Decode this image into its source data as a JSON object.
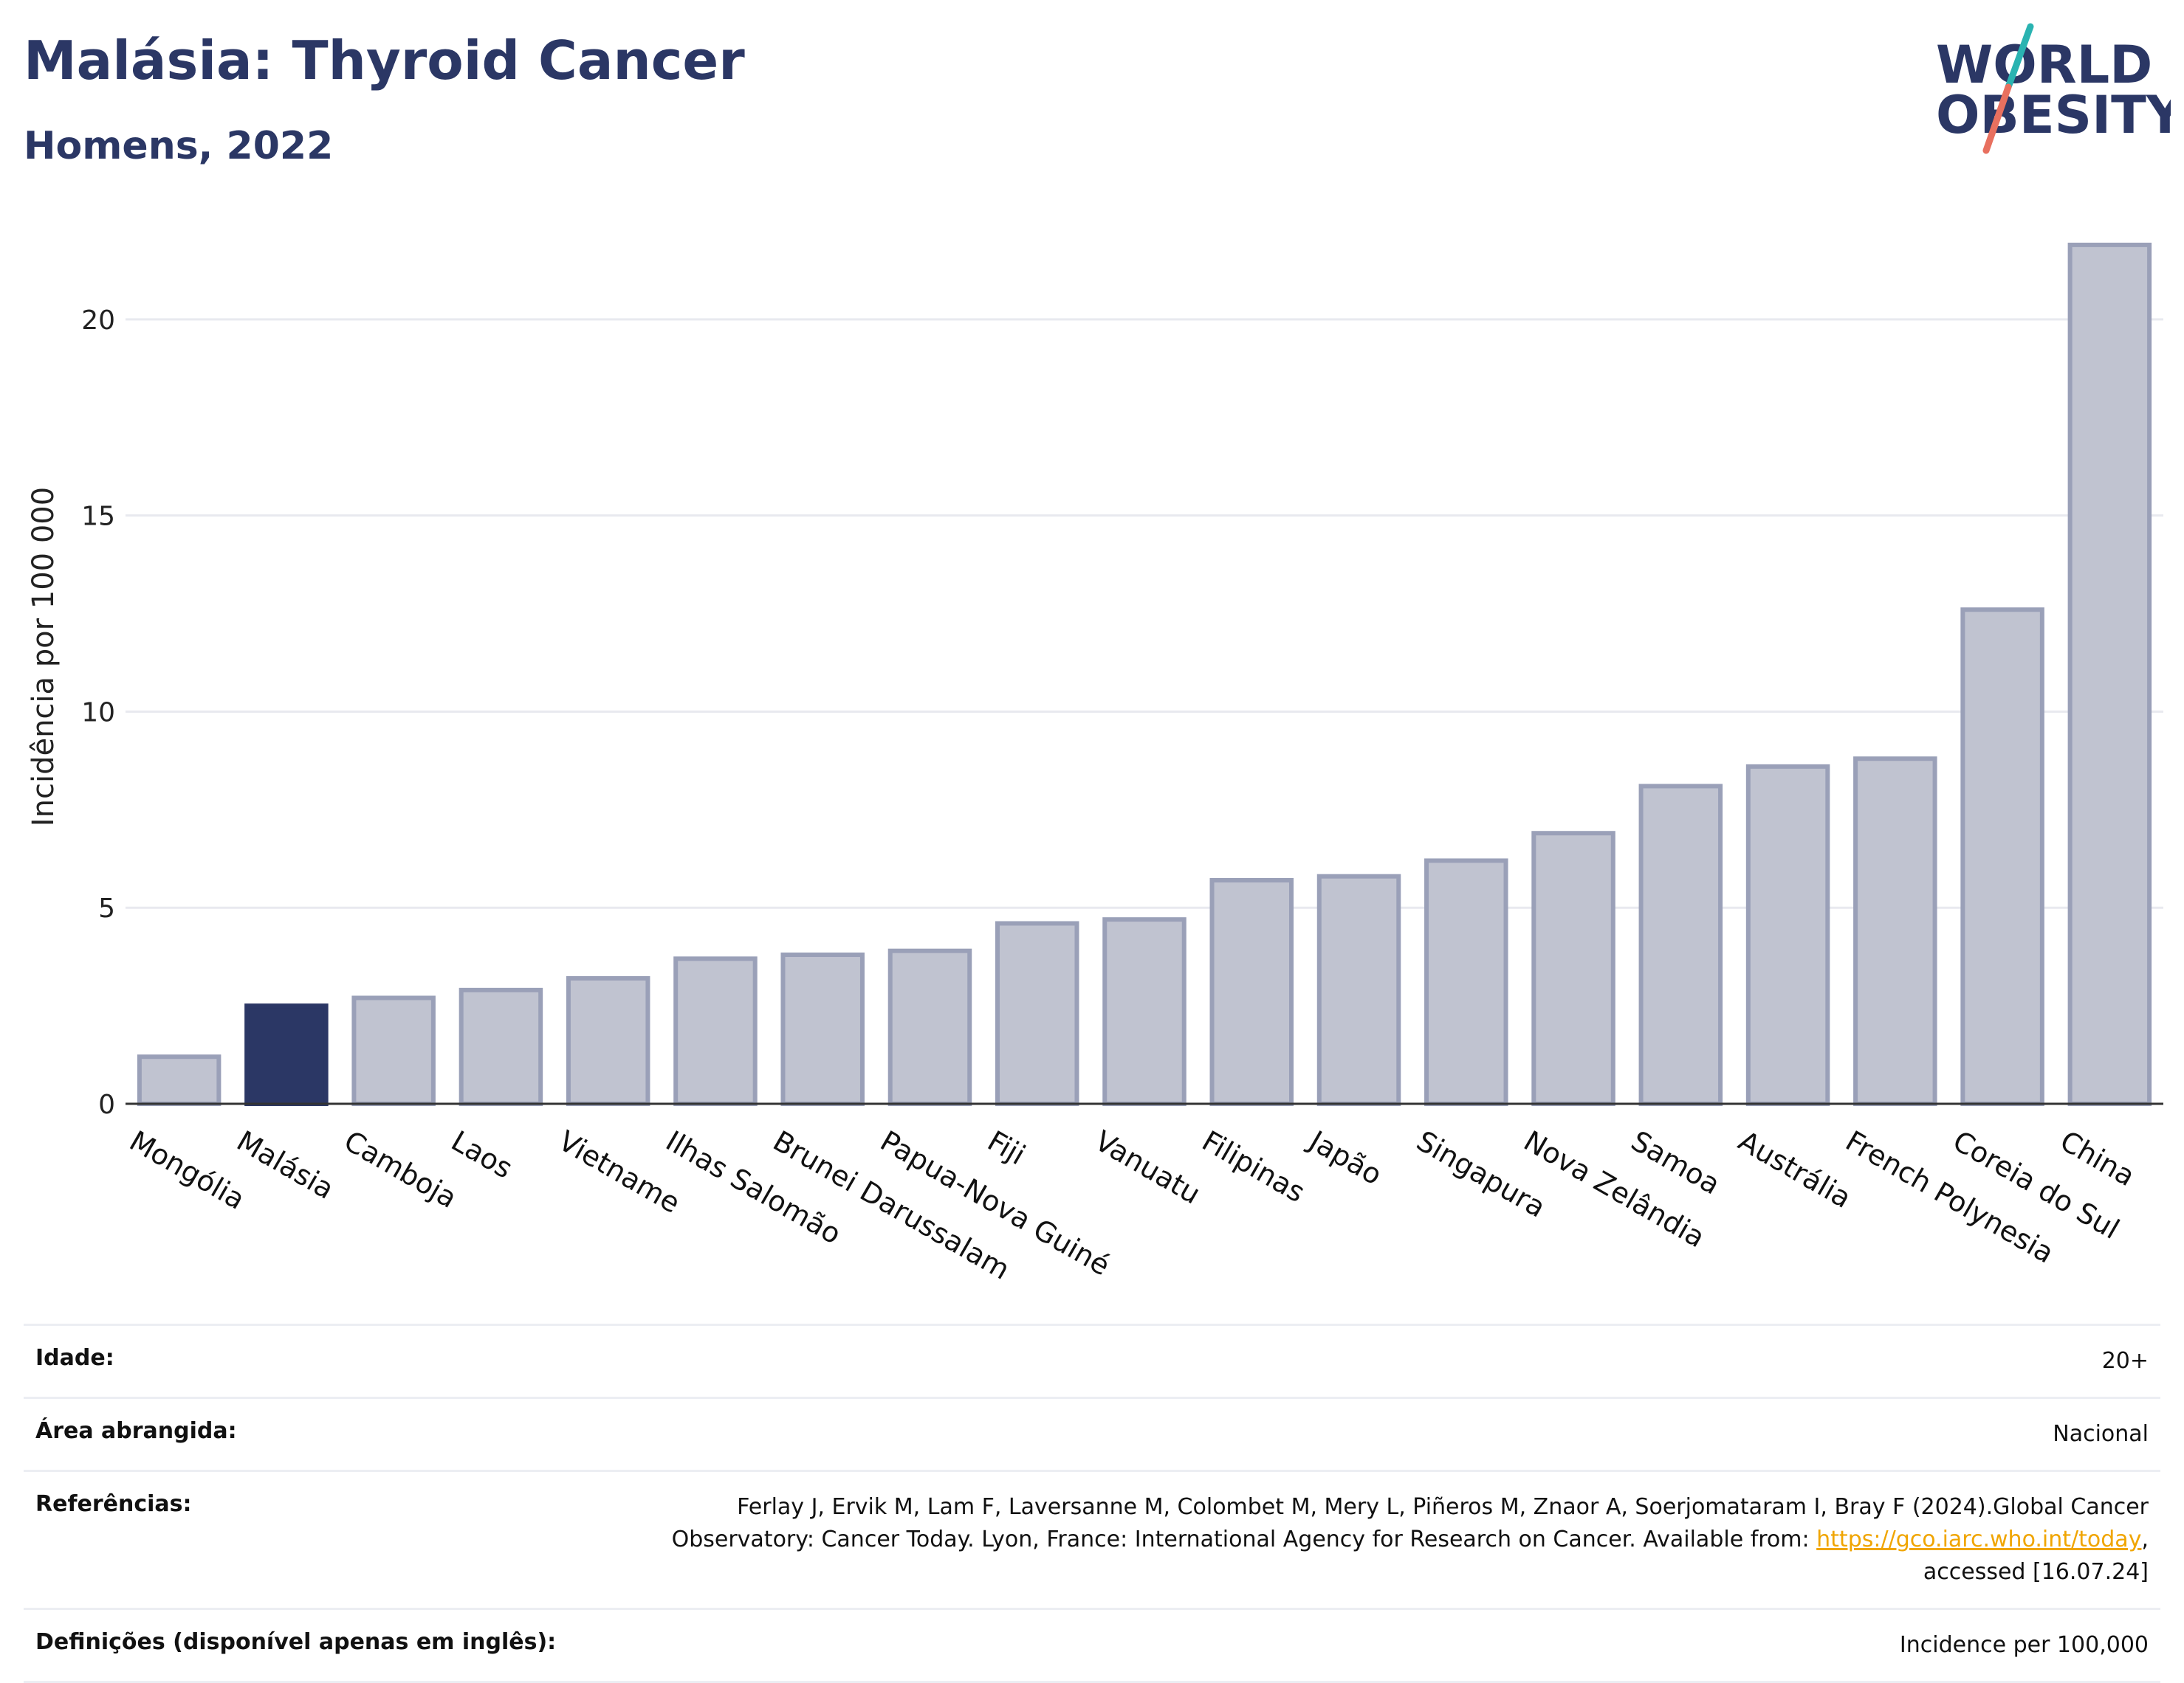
{
  "header": {
    "title": "Malásia: Thyroid Cancer",
    "subtitle": "Homens, 2022"
  },
  "logo": {
    "line1": "WORLD",
    "line2": "OBESITY",
    "colors": {
      "text": "#2b3765",
      "slash_teal": "#2ab3b1",
      "slash_coral": "#e8705f"
    }
  },
  "chart_data": {
    "type": "bar",
    "ylabel": "Incidência por 100 000",
    "xlabel": "",
    "ylim": [
      0,
      22.5
    ],
    "yticks": [
      0,
      5,
      10,
      15,
      20
    ],
    "grid": true,
    "categories": [
      "Mongólia",
      "Malásia",
      "Camboja",
      "Laos",
      "Vietname",
      "Ilhas Salomão",
      "Brunei Darussalam",
      "Papua-Nova Guiné",
      "Fiji",
      "Vanuatu",
      "Filipinas",
      "Japão",
      "Singapura",
      "Nova Zelândia",
      "Samoa",
      "Austrália",
      "French Polynesia",
      "Coreia do Sul",
      "China"
    ],
    "values": [
      1.2,
      2.5,
      2.7,
      2.9,
      3.2,
      3.7,
      3.8,
      3.9,
      4.6,
      4.7,
      5.7,
      5.8,
      6.2,
      6.9,
      8.1,
      8.6,
      8.8,
      12.6,
      21.9
    ],
    "highlight": "Malásia",
    "colors": {
      "bar": "#c0c3d0",
      "bar_border": "#9aa0b8",
      "highlight": "#2b3765"
    }
  },
  "meta": {
    "rows": [
      {
        "label": "Idade:",
        "value": "20+"
      },
      {
        "label": "Área abrangida:",
        "value": "Nacional"
      },
      {
        "label": "Referências:",
        "value_line1": "Ferlay J, Ervik M, Lam F, Laversanne M, Colombet M, Mery L, Piñeros M, Znaor A, Soerjomataram I, Bray F (2024).Global Cancer",
        "value_line2_pre": "Observatory: Cancer Today. Lyon, France: International Agency for Research on Cancer. Available from: ",
        "link": "https://gco.iarc.who.int/today",
        "value_line2_post": ",",
        "value_line3": "accessed [16.07.24]"
      },
      {
        "label": "Definições (disponível apenas em inglês):",
        "value": "Incidence per 100,000"
      }
    ]
  }
}
